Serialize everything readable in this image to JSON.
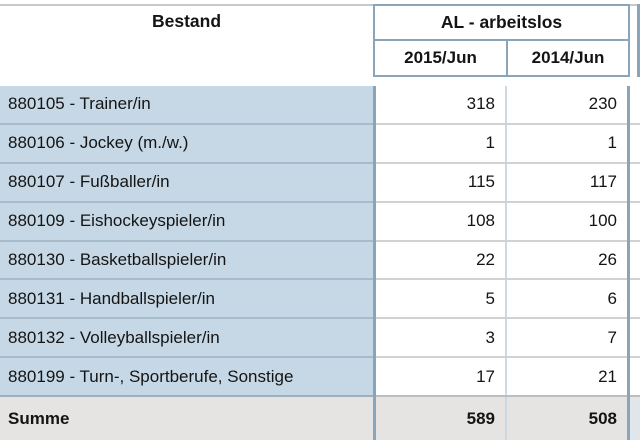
{
  "table": {
    "title_col_header": "Bestand",
    "group_header": "AL - arbeitslos",
    "sub_headers": [
      "2015/Jun",
      "2014/Jun"
    ],
    "rows": [
      {
        "label": "880105 - Trainer/in",
        "v2015": "318",
        "v2014": "230"
      },
      {
        "label": "880106 - Jockey (m./w.)",
        "v2015": "1",
        "v2014": "1"
      },
      {
        "label": "880107 - Fußballer/in",
        "v2015": "115",
        "v2014": "117"
      },
      {
        "label": "880109 - Eishockeyspieler/in",
        "v2015": "108",
        "v2014": "100"
      },
      {
        "label": "880130 - Basketballspieler/in",
        "v2015": "22",
        "v2014": "26"
      },
      {
        "label": "880131 - Handballspieler/in",
        "v2015": "5",
        "v2014": "6"
      },
      {
        "label": "880132 - Volleyballspieler/in",
        "v2015": "3",
        "v2014": "7"
      },
      {
        "label": "880199 - Turn-, Sportberufe, Sonstige",
        "v2015": "17",
        "v2014": "21"
      }
    ],
    "summary": {
      "label": "Summe",
      "v2015": "589",
      "v2014": "508"
    },
    "colors": {
      "label_bg": "#c6d8e6",
      "summary_bg": "#e5e4e2",
      "border_strong": "#8aa4ba",
      "border_light": "#ccd9e2",
      "row_divider": "#d2d2d2",
      "header_topline": "#c9c9c9"
    }
  }
}
